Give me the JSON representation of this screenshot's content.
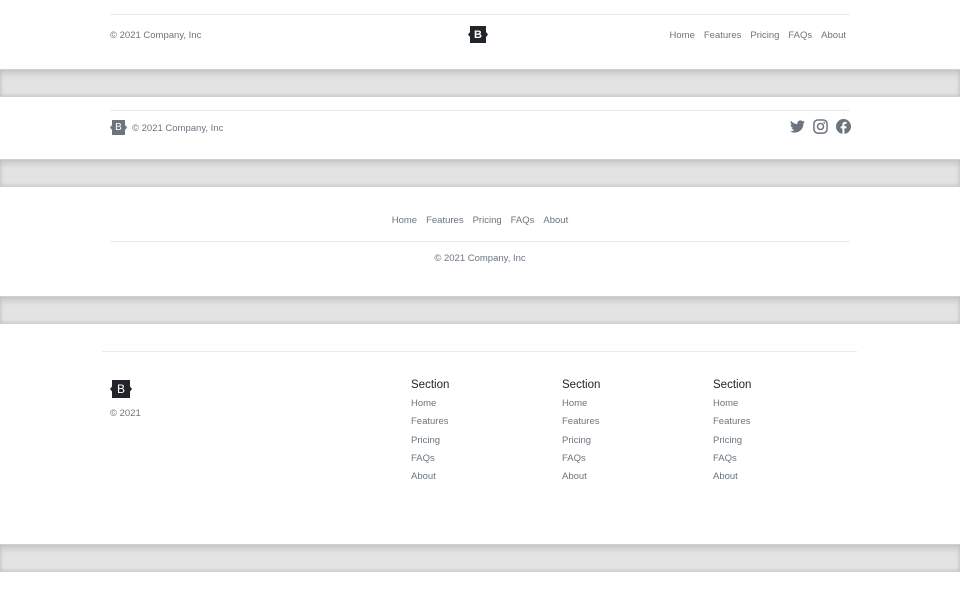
{
  "copyright_full": "© 2021 Company, Inc",
  "copyright_short": "© 2021",
  "brand_letter": "B",
  "nav": [
    "Home",
    "Features",
    "Pricing",
    "FAQs",
    "About"
  ],
  "sections": [
    {
      "title": "Section",
      "links": [
        "Home",
        "Features",
        "Pricing",
        "FAQs",
        "About"
      ]
    },
    {
      "title": "Section",
      "links": [
        "Home",
        "Features",
        "Pricing",
        "FAQs",
        "About"
      ]
    },
    {
      "title": "Section",
      "links": [
        "Home",
        "Features",
        "Pricing",
        "FAQs",
        "About"
      ]
    }
  ],
  "social_icons": [
    "twitter-icon",
    "instagram-icon",
    "facebook-icon"
  ],
  "colors": {
    "logo_dark": "#212529",
    "logo_gray": "#6c757d",
    "text": "#6c757d",
    "divider": "#e3e3e3"
  }
}
